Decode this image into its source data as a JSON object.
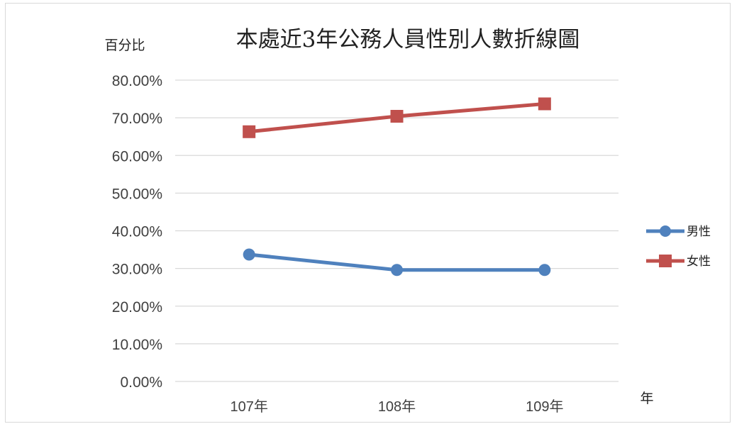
{
  "chart_data": {
    "type": "line",
    "title": "本處近3年公務人員性別人數折線圖",
    "ylabel": "百分比",
    "xlabel": "年",
    "categories": [
      "107年",
      "108年",
      "109年"
    ],
    "y_ticks": [
      "0.00%",
      "10.00%",
      "20.00%",
      "30.00%",
      "40.00%",
      "50.00%",
      "60.00%",
      "70.00%",
      "80.00%"
    ],
    "ylim": [
      0,
      0.8
    ],
    "grid": true,
    "legend_position": "right",
    "series": [
      {
        "name": "男性",
        "values": [
          0.337,
          0.296,
          0.296
        ],
        "color": "#4f81bd",
        "marker": "circle"
      },
      {
        "name": "女性",
        "values": [
          0.663,
          0.704,
          0.737
        ],
        "color": "#c0504d",
        "marker": "square"
      }
    ]
  }
}
